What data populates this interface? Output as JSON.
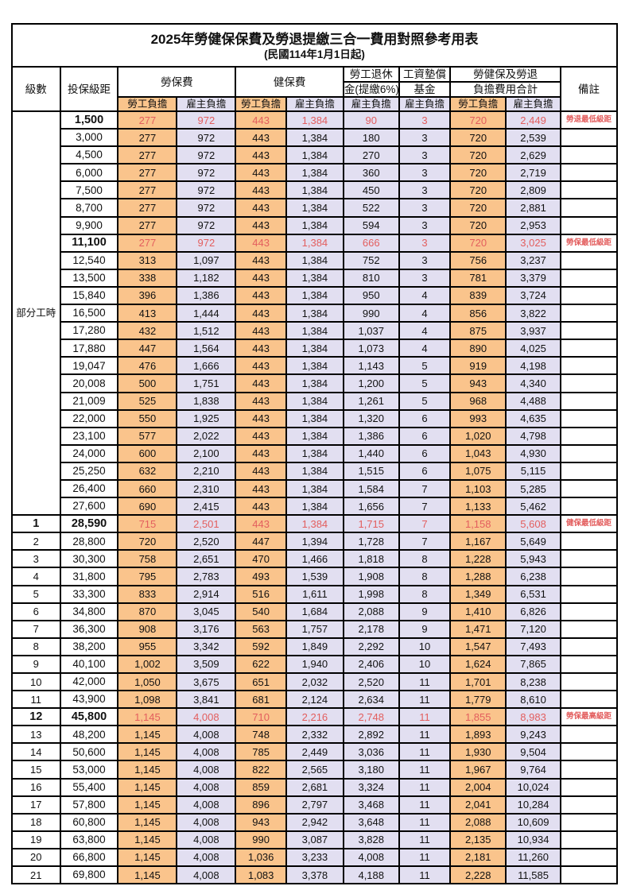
{
  "title": "2025年勞健保保費及勞退提繳三合一費用對照參考用表",
  "subtitle": "(民國114年1月1日起)",
  "colors": {
    "employee_fill": "#fac48c",
    "employer_fill": "#e2dff1",
    "highlight_text": "#e35e5e",
    "border": "#000000"
  },
  "header": {
    "level": "級數",
    "bracket": "投保級距",
    "labor_insurance": "勞保費",
    "health_insurance": "健保費",
    "pension_line1": "勞工退休",
    "pension_line2": "金(提繳6%)",
    "wage_fund_line1": "工資墊償",
    "wage_fund_line2": "基金",
    "total_line1": "勞健保及勞退",
    "total_line2": "負擔費用合計",
    "remark": "備註",
    "employee": "勞工負擔",
    "employer": "雇主負擔"
  },
  "part_time_label": "部分工時",
  "rows": [
    {
      "level": "",
      "bracket": "1,500",
      "li_e": "277",
      "li_r": "972",
      "hi_e": "443",
      "hi_r": "1,384",
      "pen": "90",
      "fund": "3",
      "te": "720",
      "tr": "2,449",
      "note": "勞退最低級距",
      "hl": true
    },
    {
      "level": "",
      "bracket": "3,000",
      "li_e": "277",
      "li_r": "972",
      "hi_e": "443",
      "hi_r": "1,384",
      "pen": "180",
      "fund": "3",
      "te": "720",
      "tr": "2,539",
      "note": "",
      "hl": false
    },
    {
      "level": "",
      "bracket": "4,500",
      "li_e": "277",
      "li_r": "972",
      "hi_e": "443",
      "hi_r": "1,384",
      "pen": "270",
      "fund": "3",
      "te": "720",
      "tr": "2,629",
      "note": "",
      "hl": false
    },
    {
      "level": "",
      "bracket": "6,000",
      "li_e": "277",
      "li_r": "972",
      "hi_e": "443",
      "hi_r": "1,384",
      "pen": "360",
      "fund": "3",
      "te": "720",
      "tr": "2,719",
      "note": "",
      "hl": false
    },
    {
      "level": "",
      "bracket": "7,500",
      "li_e": "277",
      "li_r": "972",
      "hi_e": "443",
      "hi_r": "1,384",
      "pen": "450",
      "fund": "3",
      "te": "720",
      "tr": "2,809",
      "note": "",
      "hl": false
    },
    {
      "level": "",
      "bracket": "8,700",
      "li_e": "277",
      "li_r": "972",
      "hi_e": "443",
      "hi_r": "1,384",
      "pen": "522",
      "fund": "3",
      "te": "720",
      "tr": "2,881",
      "note": "",
      "hl": false
    },
    {
      "level": "",
      "bracket": "9,900",
      "li_e": "277",
      "li_r": "972",
      "hi_e": "443",
      "hi_r": "1,384",
      "pen": "594",
      "fund": "3",
      "te": "720",
      "tr": "2,953",
      "note": "",
      "hl": false
    },
    {
      "level": "",
      "bracket": "11,100",
      "li_e": "277",
      "li_r": "972",
      "hi_e": "443",
      "hi_r": "1,384",
      "pen": "666",
      "fund": "3",
      "te": "720",
      "tr": "3,025",
      "note": "勞保最低級距",
      "hl": true
    },
    {
      "level": "",
      "bracket": "12,540",
      "li_e": "313",
      "li_r": "1,097",
      "hi_e": "443",
      "hi_r": "1,384",
      "pen": "752",
      "fund": "3",
      "te": "756",
      "tr": "3,237",
      "note": "",
      "hl": false
    },
    {
      "level": "",
      "bracket": "13,500",
      "li_e": "338",
      "li_r": "1,182",
      "hi_e": "443",
      "hi_r": "1,384",
      "pen": "810",
      "fund": "3",
      "te": "781",
      "tr": "3,379",
      "note": "",
      "hl": false
    },
    {
      "level": "",
      "bracket": "15,840",
      "li_e": "396",
      "li_r": "1,386",
      "hi_e": "443",
      "hi_r": "1,384",
      "pen": "950",
      "fund": "4",
      "te": "839",
      "tr": "3,724",
      "note": "",
      "hl": false
    },
    {
      "level": "",
      "bracket": "16,500",
      "li_e": "413",
      "li_r": "1,444",
      "hi_e": "443",
      "hi_r": "1,384",
      "pen": "990",
      "fund": "4",
      "te": "856",
      "tr": "3,822",
      "note": "",
      "hl": false
    },
    {
      "level": "",
      "bracket": "17,280",
      "li_e": "432",
      "li_r": "1,512",
      "hi_e": "443",
      "hi_r": "1,384",
      "pen": "1,037",
      "fund": "4",
      "te": "875",
      "tr": "3,937",
      "note": "",
      "hl": false
    },
    {
      "level": "",
      "bracket": "17,880",
      "li_e": "447",
      "li_r": "1,564",
      "hi_e": "443",
      "hi_r": "1,384",
      "pen": "1,073",
      "fund": "4",
      "te": "890",
      "tr": "4,025",
      "note": "",
      "hl": false
    },
    {
      "level": "",
      "bracket": "19,047",
      "li_e": "476",
      "li_r": "1,666",
      "hi_e": "443",
      "hi_r": "1,384",
      "pen": "1,143",
      "fund": "5",
      "te": "919",
      "tr": "4,198",
      "note": "",
      "hl": false
    },
    {
      "level": "",
      "bracket": "20,008",
      "li_e": "500",
      "li_r": "1,751",
      "hi_e": "443",
      "hi_r": "1,384",
      "pen": "1,200",
      "fund": "5",
      "te": "943",
      "tr": "4,340",
      "note": "",
      "hl": false
    },
    {
      "level": "",
      "bracket": "21,009",
      "li_e": "525",
      "li_r": "1,838",
      "hi_e": "443",
      "hi_r": "1,384",
      "pen": "1,261",
      "fund": "5",
      "te": "968",
      "tr": "4,488",
      "note": "",
      "hl": false
    },
    {
      "level": "",
      "bracket": "22,000",
      "li_e": "550",
      "li_r": "1,925",
      "hi_e": "443",
      "hi_r": "1,384",
      "pen": "1,320",
      "fund": "6",
      "te": "993",
      "tr": "4,635",
      "note": "",
      "hl": false
    },
    {
      "level": "",
      "bracket": "23,100",
      "li_e": "577",
      "li_r": "2,022",
      "hi_e": "443",
      "hi_r": "1,384",
      "pen": "1,386",
      "fund": "6",
      "te": "1,020",
      "tr": "4,798",
      "note": "",
      "hl": false
    },
    {
      "level": "",
      "bracket": "24,000",
      "li_e": "600",
      "li_r": "2,100",
      "hi_e": "443",
      "hi_r": "1,384",
      "pen": "1,440",
      "fund": "6",
      "te": "1,043",
      "tr": "4,930",
      "note": "",
      "hl": false
    },
    {
      "level": "",
      "bracket": "25,250",
      "li_e": "632",
      "li_r": "2,210",
      "hi_e": "443",
      "hi_r": "1,384",
      "pen": "1,515",
      "fund": "6",
      "te": "1,075",
      "tr": "5,115",
      "note": "",
      "hl": false
    },
    {
      "level": "",
      "bracket": "26,400",
      "li_e": "660",
      "li_r": "2,310",
      "hi_e": "443",
      "hi_r": "1,384",
      "pen": "1,584",
      "fund": "7",
      "te": "1,103",
      "tr": "5,285",
      "note": "",
      "hl": false
    },
    {
      "level": "",
      "bracket": "27,600",
      "li_e": "690",
      "li_r": "2,415",
      "hi_e": "443",
      "hi_r": "1,384",
      "pen": "1,656",
      "fund": "7",
      "te": "1,133",
      "tr": "5,462",
      "note": "",
      "hl": false
    },
    {
      "level": "1",
      "bracket": "28,590",
      "li_e": "715",
      "li_r": "2,501",
      "hi_e": "443",
      "hi_r": "1,384",
      "pen": "1,715",
      "fund": "7",
      "te": "1,158",
      "tr": "5,608",
      "note": "健保最低級距",
      "hl": true
    },
    {
      "level": "2",
      "bracket": "28,800",
      "li_e": "720",
      "li_r": "2,520",
      "hi_e": "447",
      "hi_r": "1,394",
      "pen": "1,728",
      "fund": "7",
      "te": "1,167",
      "tr": "5,649",
      "note": "",
      "hl": false
    },
    {
      "level": "3",
      "bracket": "30,300",
      "li_e": "758",
      "li_r": "2,651",
      "hi_e": "470",
      "hi_r": "1,466",
      "pen": "1,818",
      "fund": "8",
      "te": "1,228",
      "tr": "5,943",
      "note": "",
      "hl": false
    },
    {
      "level": "4",
      "bracket": "31,800",
      "li_e": "795",
      "li_r": "2,783",
      "hi_e": "493",
      "hi_r": "1,539",
      "pen": "1,908",
      "fund": "8",
      "te": "1,288",
      "tr": "6,238",
      "note": "",
      "hl": false
    },
    {
      "level": "5",
      "bracket": "33,300",
      "li_e": "833",
      "li_r": "2,914",
      "hi_e": "516",
      "hi_r": "1,611",
      "pen": "1,998",
      "fund": "8",
      "te": "1,349",
      "tr": "6,531",
      "note": "",
      "hl": false
    },
    {
      "level": "6",
      "bracket": "34,800",
      "li_e": "870",
      "li_r": "3,045",
      "hi_e": "540",
      "hi_r": "1,684",
      "pen": "2,088",
      "fund": "9",
      "te": "1,410",
      "tr": "6,826",
      "note": "",
      "hl": false
    },
    {
      "level": "7",
      "bracket": "36,300",
      "li_e": "908",
      "li_r": "3,176",
      "hi_e": "563",
      "hi_r": "1,757",
      "pen": "2,178",
      "fund": "9",
      "te": "1,471",
      "tr": "7,120",
      "note": "",
      "hl": false
    },
    {
      "level": "8",
      "bracket": "38,200",
      "li_e": "955",
      "li_r": "3,342",
      "hi_e": "592",
      "hi_r": "1,849",
      "pen": "2,292",
      "fund": "10",
      "te": "1,547",
      "tr": "7,493",
      "note": "",
      "hl": false
    },
    {
      "level": "9",
      "bracket": "40,100",
      "li_e": "1,002",
      "li_r": "3,509",
      "hi_e": "622",
      "hi_r": "1,940",
      "pen": "2,406",
      "fund": "10",
      "te": "1,624",
      "tr": "7,865",
      "note": "",
      "hl": false
    },
    {
      "level": "10",
      "bracket": "42,000",
      "li_e": "1,050",
      "li_r": "3,675",
      "hi_e": "651",
      "hi_r": "2,032",
      "pen": "2,520",
      "fund": "11",
      "te": "1,701",
      "tr": "8,238",
      "note": "",
      "hl": false
    },
    {
      "level": "11",
      "bracket": "43,900",
      "li_e": "1,098",
      "li_r": "3,841",
      "hi_e": "681",
      "hi_r": "2,124",
      "pen": "2,634",
      "fund": "11",
      "te": "1,779",
      "tr": "8,610",
      "note": "",
      "hl": false
    },
    {
      "level": "12",
      "bracket": "45,800",
      "li_e": "1,145",
      "li_r": "4,008",
      "hi_e": "710",
      "hi_r": "2,216",
      "pen": "2,748",
      "fund": "11",
      "te": "1,855",
      "tr": "8,983",
      "note": "勞保最高級距",
      "hl": true
    },
    {
      "level": "13",
      "bracket": "48,200",
      "li_e": "1,145",
      "li_r": "4,008",
      "hi_e": "748",
      "hi_r": "2,332",
      "pen": "2,892",
      "fund": "11",
      "te": "1,893",
      "tr": "9,243",
      "note": "",
      "hl": false
    },
    {
      "level": "14",
      "bracket": "50,600",
      "li_e": "1,145",
      "li_r": "4,008",
      "hi_e": "785",
      "hi_r": "2,449",
      "pen": "3,036",
      "fund": "11",
      "te": "1,930",
      "tr": "9,504",
      "note": "",
      "hl": false
    },
    {
      "level": "15",
      "bracket": "53,000",
      "li_e": "1,145",
      "li_r": "4,008",
      "hi_e": "822",
      "hi_r": "2,565",
      "pen": "3,180",
      "fund": "11",
      "te": "1,967",
      "tr": "9,764",
      "note": "",
      "hl": false
    },
    {
      "level": "16",
      "bracket": "55,400",
      "li_e": "1,145",
      "li_r": "4,008",
      "hi_e": "859",
      "hi_r": "2,681",
      "pen": "3,324",
      "fund": "11",
      "te": "2,004",
      "tr": "10,024",
      "note": "",
      "hl": false
    },
    {
      "level": "17",
      "bracket": "57,800",
      "li_e": "1,145",
      "li_r": "4,008",
      "hi_e": "896",
      "hi_r": "2,797",
      "pen": "3,468",
      "fund": "11",
      "te": "2,041",
      "tr": "10,284",
      "note": "",
      "hl": false
    },
    {
      "level": "18",
      "bracket": "60,800",
      "li_e": "1,145",
      "li_r": "4,008",
      "hi_e": "943",
      "hi_r": "2,942",
      "pen": "3,648",
      "fund": "11",
      "te": "2,088",
      "tr": "10,609",
      "note": "",
      "hl": false
    },
    {
      "level": "19",
      "bracket": "63,800",
      "li_e": "1,145",
      "li_r": "4,008",
      "hi_e": "990",
      "hi_r": "3,087",
      "pen": "3,828",
      "fund": "11",
      "te": "2,135",
      "tr": "10,934",
      "note": "",
      "hl": false
    },
    {
      "level": "20",
      "bracket": "66,800",
      "li_e": "1,145",
      "li_r": "4,008",
      "hi_e": "1,036",
      "hi_r": "3,233",
      "pen": "4,008",
      "fund": "11",
      "te": "2,181",
      "tr": "11,260",
      "note": "",
      "hl": false
    },
    {
      "level": "21",
      "bracket": "69,800",
      "li_e": "1,145",
      "li_r": "4,008",
      "hi_e": "1,083",
      "hi_r": "3,378",
      "pen": "4,188",
      "fund": "11",
      "te": "2,228",
      "tr": "11,585",
      "note": "",
      "hl": false
    }
  ]
}
